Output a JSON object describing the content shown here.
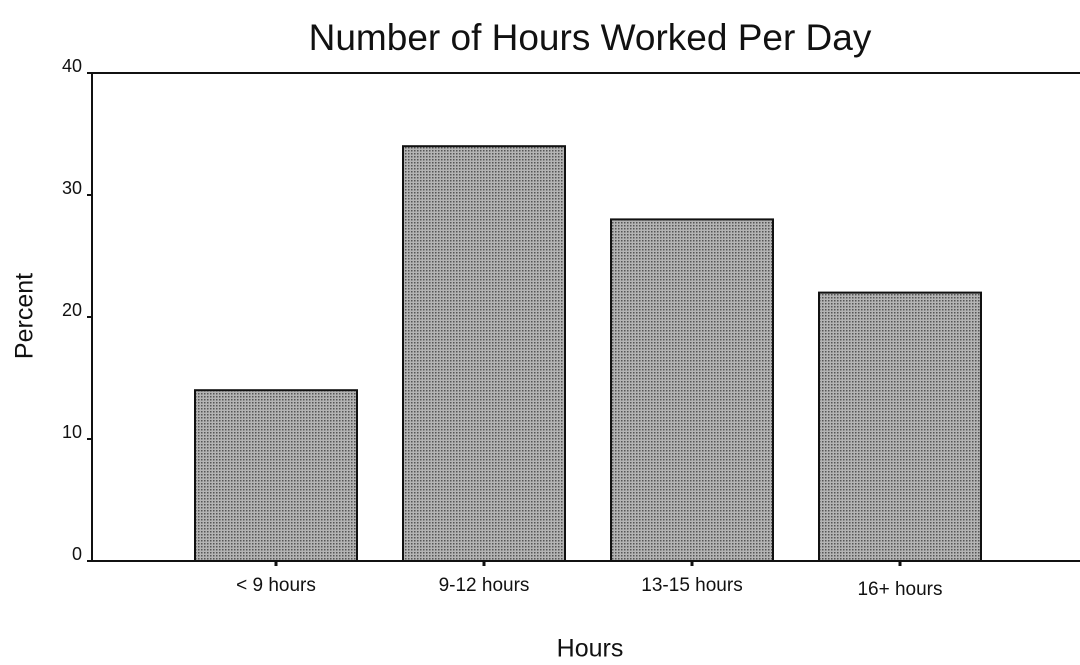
{
  "chart_data": {
    "type": "bar",
    "title": "Number of Hours Worked Per Day",
    "x_label": "Hours",
    "y_label": "Percent",
    "categories": [
      "< 9 hours",
      "9-12 hours",
      "13-15 hours",
      "16+ hours"
    ],
    "values": [
      14,
      34,
      28,
      22
    ],
    "color": "#8c8c8c",
    "ylim": [
      0,
      40
    ],
    "yticks": [
      0,
      10,
      20,
      30,
      40
    ],
    "grid": false
  }
}
